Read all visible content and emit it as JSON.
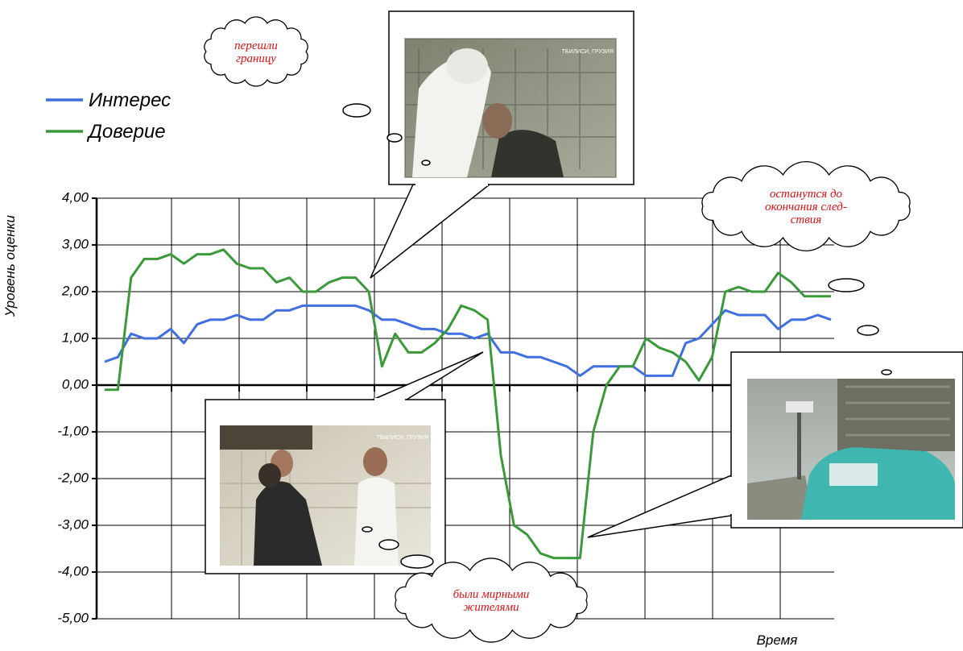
{
  "chart_data": {
    "type": "line",
    "y_axis_label": "Уровень оценки",
    "x_axis_label": "Время",
    "categories": [
      null,
      null,
      null,
      null,
      null,
      null,
      null,
      null,
      null,
      null,
      null,
      null,
      null,
      null,
      null,
      null,
      null,
      null,
      null,
      null,
      null,
      null,
      null,
      null,
      null,
      null,
      null,
      null,
      null,
      null,
      null,
      null,
      null,
      null,
      null,
      null,
      null,
      null,
      null,
      null,
      null,
      null,
      null,
      null,
      null,
      null,
      null,
      null,
      null,
      null,
      null,
      null,
      null,
      null,
      null,
      null
    ],
    "series": [
      {
        "name": "Интерес",
        "color": "#3f6fe0",
        "values": [
          0.5,
          0.6,
          1.1,
          1.0,
          1.0,
          1.2,
          0.9,
          1.3,
          1.4,
          1.4,
          1.5,
          1.4,
          1.4,
          1.6,
          1.6,
          1.7,
          1.7,
          1.7,
          1.7,
          1.7,
          1.6,
          1.4,
          1.4,
          1.3,
          1.2,
          1.2,
          1.1,
          1.1,
          1.0,
          1.1,
          0.7,
          0.7,
          0.6,
          0.6,
          0.5,
          0.4,
          0.2,
          0.4,
          0.4,
          0.4,
          0.4,
          0.2,
          0.2,
          0.2,
          0.9,
          1.0,
          1.3,
          1.6,
          1.5,
          1.5,
          1.5,
          1.2,
          1.4,
          1.4,
          1.5,
          1.4
        ]
      },
      {
        "name": "Доверие",
        "color": "#3a9a3a",
        "values": [
          -0.1,
          -0.1,
          2.3,
          2.7,
          2.7,
          2.8,
          2.6,
          2.8,
          2.8,
          2.9,
          2.6,
          2.5,
          2.5,
          2.2,
          2.3,
          2.0,
          2.0,
          2.2,
          2.3,
          2.3,
          2.0,
          0.4,
          1.1,
          0.7,
          0.7,
          0.9,
          1.2,
          1.7,
          1.6,
          1.4,
          -1.5,
          -3.0,
          -3.2,
          -3.6,
          -3.7,
          -3.7,
          -3.7,
          -1.0,
          0.0,
          0.4,
          0.4,
          1.0,
          0.8,
          0.7,
          0.5,
          0.1,
          0.6,
          2.0,
          2.1,
          2.0,
          2.0,
          2.4,
          2.2,
          1.9,
          1.9,
          1.9
        ]
      }
    ],
    "ylim": [
      -5,
      4
    ],
    "yticks": [
      {
        "value": 4,
        "label": "4,00"
      },
      {
        "value": 3,
        "label": "3,00"
      },
      {
        "value": 2,
        "label": "2,00"
      },
      {
        "value": 1,
        "label": "1,00"
      },
      {
        "value": 0,
        "label": "0,00"
      },
      {
        "value": -1,
        "label": "-1,00"
      },
      {
        "value": -2,
        "label": "-2,00"
      },
      {
        "value": -3,
        "label": "-3,00"
      },
      {
        "value": -4,
        "label": "-4,00"
      },
      {
        "value": -5,
        "label": "-5,00"
      }
    ],
    "grid": true,
    "annotations": [
      {
        "lines": [
          "перешли",
          "границу"
        ]
      },
      {
        "lines": [
          "останутся до",
          "окончания след-",
          "ствия"
        ]
      },
      {
        "lines": [
          "были мирными",
          "жителями"
        ]
      }
    ],
    "photo_captions": [
      "ТБИЛИСИ, ГРУЗИЯ",
      "ТБИЛИСИ, ГРУЗИЯ"
    ]
  }
}
